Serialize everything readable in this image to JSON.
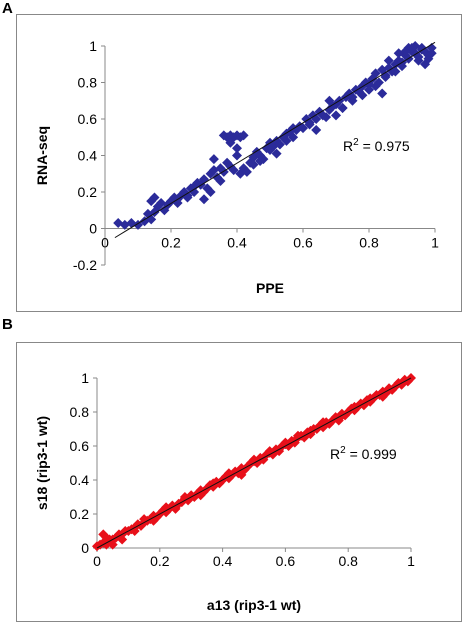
{
  "chart_data": [
    {
      "panel": "A",
      "type": "scatter",
      "title": "",
      "xlabel": "PPE",
      "ylabel": "RNA-seq",
      "xlim": [
        0,
        1
      ],
      "ylim": [
        -0.2,
        1
      ],
      "xticks": [
        "0",
        "0.2",
        "0.4",
        "0.6",
        "0.8",
        "1"
      ],
      "yticks": [
        "-0.2",
        "0",
        "0.2",
        "0.4",
        "0.6",
        "0.8",
        "1"
      ],
      "annotation": {
        "prefix": "R",
        "sup": "2",
        "suffix": " = 0.975"
      },
      "marker_color": "#2B2B9A",
      "marker": "diamond",
      "trendline": {
        "x": [
          0.03,
          1.0
        ],
        "y": [
          -0.05,
          1.02
        ]
      },
      "points": {
        "x": [
          0.04,
          0.06,
          0.08,
          0.1,
          0.12,
          0.13,
          0.14,
          0.15,
          0.16,
          0.17,
          0.18,
          0.19,
          0.2,
          0.21,
          0.22,
          0.23,
          0.24,
          0.25,
          0.26,
          0.27,
          0.28,
          0.29,
          0.3,
          0.31,
          0.32,
          0.33,
          0.34,
          0.35,
          0.36,
          0.37,
          0.38,
          0.39,
          0.4,
          0.41,
          0.42,
          0.43,
          0.44,
          0.45,
          0.46,
          0.47,
          0.48,
          0.49,
          0.5,
          0.51,
          0.52,
          0.53,
          0.54,
          0.55,
          0.56,
          0.57,
          0.58,
          0.59,
          0.6,
          0.61,
          0.62,
          0.63,
          0.64,
          0.65,
          0.66,
          0.67,
          0.68,
          0.69,
          0.7,
          0.71,
          0.72,
          0.73,
          0.74,
          0.75,
          0.76,
          0.77,
          0.78,
          0.79,
          0.8,
          0.81,
          0.82,
          0.83,
          0.84,
          0.85,
          0.86,
          0.87,
          0.88,
          0.89,
          0.9,
          0.91,
          0.92,
          0.93,
          0.94,
          0.95,
          0.96,
          0.97,
          0.98,
          0.99,
          0.36,
          0.37,
          0.38,
          0.39,
          0.4,
          0.41,
          0.42,
          0.38,
          0.4,
          0.14,
          0.15,
          0.3,
          0.32,
          0.5,
          0.52,
          0.55,
          0.7,
          0.72,
          0.75,
          0.8,
          0.82,
          0.85,
          0.88,
          0.9,
          0.92,
          0.93,
          0.94,
          0.95,
          0.96,
          0.97,
          0.98,
          0.99,
          0.91,
          0.93,
          0.86,
          0.84,
          0.78,
          0.62,
          0.64,
          0.45,
          0.47,
          0.27,
          0.25,
          0.22,
          0.33,
          0.35,
          0.57,
          0.68,
          0.74,
          0.89
        ],
        "y": [
          0.03,
          0.02,
          0.03,
          0.02,
          0.04,
          0.08,
          0.15,
          0.17,
          0.12,
          0.14,
          0.1,
          0.13,
          0.15,
          0.17,
          0.14,
          0.18,
          0.2,
          0.18,
          0.22,
          0.2,
          0.25,
          0.24,
          0.27,
          0.22,
          0.3,
          0.32,
          0.28,
          0.33,
          0.31,
          0.36,
          0.34,
          0.32,
          0.4,
          0.3,
          0.33,
          0.31,
          0.36,
          0.39,
          0.42,
          0.4,
          0.38,
          0.44,
          0.47,
          0.45,
          0.48,
          0.46,
          0.5,
          0.52,
          0.53,
          0.5,
          0.54,
          0.56,
          0.55,
          0.6,
          0.58,
          0.62,
          0.6,
          0.64,
          0.62,
          0.61,
          0.65,
          0.67,
          0.68,
          0.7,
          0.66,
          0.72,
          0.74,
          0.7,
          0.76,
          0.75,
          0.78,
          0.8,
          0.79,
          0.82,
          0.85,
          0.8,
          0.87,
          0.84,
          0.88,
          0.86,
          0.9,
          0.92,
          0.89,
          0.95,
          0.93,
          0.97,
          0.96,
          0.94,
          0.98,
          0.97,
          0.95,
          0.99,
          0.51,
          0.5,
          0.51,
          0.5,
          0.51,
          0.5,
          0.51,
          0.47,
          0.44,
          0.05,
          0.09,
          0.16,
          0.2,
          0.43,
          0.41,
          0.48,
          0.62,
          0.66,
          0.72,
          0.76,
          0.78,
          0.83,
          0.86,
          0.91,
          0.99,
          0.98,
          1.0,
          0.92,
          0.99,
          0.9,
          0.93,
          0.96,
          0.97,
          0.99,
          0.92,
          0.74,
          0.73,
          0.57,
          0.54,
          0.35,
          0.37,
          0.23,
          0.17,
          0.16,
          0.38,
          0.26,
          0.55,
          0.7,
          0.73,
          0.96
        ]
      }
    },
    {
      "panel": "B",
      "type": "scatter",
      "title": "",
      "xlabel": "a13 (rip3-1 wt)",
      "ylabel": "s18 (rip3-1 wt)",
      "xlim": [
        0,
        1
      ],
      "ylim": [
        0,
        1
      ],
      "xticks": [
        "0",
        "0.2",
        "0.4",
        "0.6",
        "0.8",
        "1"
      ],
      "yticks": [
        "0",
        "0.2",
        "0.4",
        "0.6",
        "0.8",
        "1"
      ],
      "annotation": {
        "prefix": "R",
        "sup": "2",
        "suffix": " = 0.999"
      },
      "marker_color": "#E8101A",
      "marker": "diamond",
      "trendline": {
        "x": [
          0.0,
          1.0
        ],
        "y": [
          0.0,
          1.0
        ]
      },
      "points": {
        "x": [
          0.0,
          0.01,
          0.02,
          0.03,
          0.04,
          0.05,
          0.06,
          0.07,
          0.08,
          0.09,
          0.1,
          0.11,
          0.12,
          0.13,
          0.14,
          0.15,
          0.16,
          0.17,
          0.18,
          0.19,
          0.2,
          0.21,
          0.22,
          0.23,
          0.24,
          0.25,
          0.26,
          0.27,
          0.28,
          0.29,
          0.3,
          0.31,
          0.32,
          0.33,
          0.34,
          0.35,
          0.36,
          0.37,
          0.38,
          0.39,
          0.4,
          0.41,
          0.42,
          0.43,
          0.44,
          0.45,
          0.46,
          0.47,
          0.48,
          0.49,
          0.5,
          0.51,
          0.52,
          0.53,
          0.54,
          0.55,
          0.56,
          0.57,
          0.58,
          0.59,
          0.6,
          0.61,
          0.62,
          0.63,
          0.64,
          0.65,
          0.66,
          0.67,
          0.68,
          0.69,
          0.7,
          0.71,
          0.72,
          0.73,
          0.74,
          0.75,
          0.76,
          0.77,
          0.78,
          0.79,
          0.8,
          0.81,
          0.82,
          0.83,
          0.84,
          0.85,
          0.86,
          0.87,
          0.88,
          0.89,
          0.9,
          0.91,
          0.92,
          0.93,
          0.94,
          0.95,
          0.96,
          0.97,
          0.98,
          0.99,
          1.0,
          0.02,
          0.03,
          0.05,
          0.08,
          0.12,
          0.15,
          0.18,
          0.22,
          0.25,
          0.28,
          0.33,
          0.37,
          0.42,
          0.46,
          0.5,
          0.55,
          0.6,
          0.64,
          0.68,
          0.72,
          0.77,
          0.82,
          0.87,
          0.91,
          0.96
        ],
        "y": [
          0.01,
          0.02,
          0.03,
          0.02,
          0.05,
          0.05,
          0.06,
          0.08,
          0.08,
          0.1,
          0.1,
          0.11,
          0.12,
          0.14,
          0.13,
          0.15,
          0.16,
          0.17,
          0.19,
          0.18,
          0.2,
          0.22,
          0.21,
          0.23,
          0.25,
          0.24,
          0.26,
          0.27,
          0.29,
          0.28,
          0.31,
          0.3,
          0.32,
          0.34,
          0.33,
          0.35,
          0.37,
          0.36,
          0.39,
          0.38,
          0.4,
          0.42,
          0.41,
          0.43,
          0.45,
          0.44,
          0.47,
          0.46,
          0.48,
          0.5,
          0.51,
          0.5,
          0.53,
          0.52,
          0.55,
          0.56,
          0.55,
          0.58,
          0.57,
          0.6,
          0.61,
          0.6,
          0.63,
          0.62,
          0.65,
          0.66,
          0.65,
          0.68,
          0.67,
          0.7,
          0.7,
          0.72,
          0.71,
          0.74,
          0.73,
          0.75,
          0.77,
          0.76,
          0.79,
          0.78,
          0.8,
          0.82,
          0.81,
          0.83,
          0.85,
          0.84,
          0.87,
          0.86,
          0.88,
          0.9,
          0.9,
          0.92,
          0.91,
          0.94,
          0.93,
          0.95,
          0.97,
          0.96,
          0.99,
          0.98,
          1.0,
          0.08,
          0.06,
          0.02,
          0.05,
          0.1,
          0.17,
          0.16,
          0.24,
          0.23,
          0.3,
          0.31,
          0.38,
          0.44,
          0.43,
          0.52,
          0.57,
          0.62,
          0.66,
          0.69,
          0.74,
          0.75,
          0.83,
          0.88,
          0.89,
          0.97
        ]
      }
    }
  ]
}
